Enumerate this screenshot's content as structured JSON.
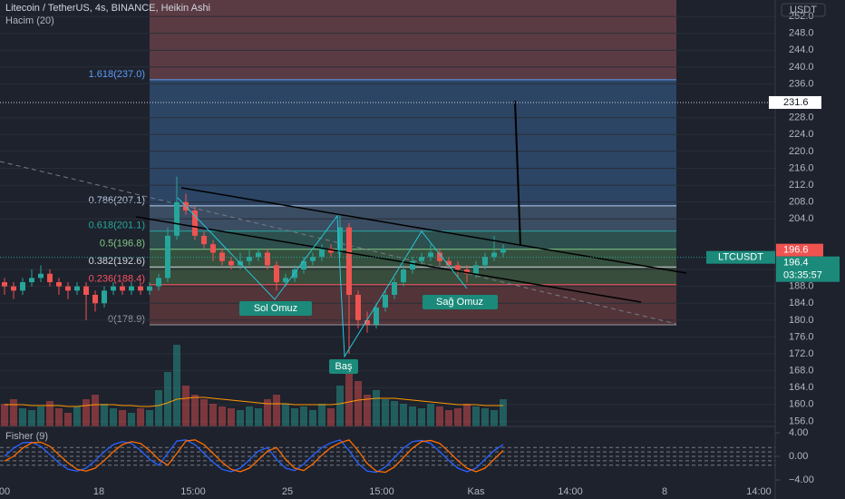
{
  "chart_data": {
    "type": "candlestick",
    "title": "Litecoin / TetherUS, 4s, BINANCE, Heikin Ashi",
    "volume_title": "Hacim (20)",
    "fisher_title": "Fisher (9)",
    "currency": "USDT",
    "symbol": "LTCUSDT",
    "up_color": "#26a69a",
    "down_color": "#ef5350",
    "open": [
      189,
      188,
      187,
      189,
      190,
      191,
      189,
      188,
      187,
      188,
      186,
      184,
      187,
      188,
      187,
      188,
      187,
      188,
      190,
      200,
      208,
      206,
      200,
      198,
      196,
      194,
      193,
      194,
      195,
      196,
      193,
      189,
      190,
      192,
      194,
      195,
      197,
      196,
      202,
      186,
      180,
      179,
      183,
      186,
      189,
      192,
      194,
      195,
      196,
      194,
      193,
      192,
      191,
      193,
      195,
      196
    ],
    "close": [
      188,
      187,
      189,
      190,
      191,
      189,
      188,
      187,
      188,
      186,
      184,
      187,
      188,
      187,
      188,
      187,
      188,
      190,
      200,
      208,
      206,
      200,
      198,
      196,
      194,
      193,
      194,
      195,
      196,
      193,
      189,
      190,
      192,
      194,
      195,
      197,
      196,
      202,
      186,
      180,
      179,
      183,
      186,
      189,
      192,
      194,
      195,
      196,
      194,
      193,
      192,
      191,
      193,
      195,
      196,
      197
    ],
    "high": [
      190,
      189,
      190,
      192,
      193,
      192,
      190,
      189,
      189,
      189,
      187,
      188,
      189,
      189,
      189,
      189,
      189,
      191,
      202,
      214,
      210,
      207,
      201,
      199,
      197,
      195,
      196,
      197,
      197,
      197,
      194,
      191,
      193,
      195,
      196,
      198,
      198,
      205,
      203,
      187,
      182,
      184,
      187,
      190,
      193,
      195,
      196,
      198,
      197,
      195,
      194,
      193,
      194,
      196,
      200,
      198
    ],
    "low": [
      186,
      185,
      186,
      188,
      189,
      188,
      186,
      185,
      186,
      180,
      182,
      183,
      186,
      186,
      186,
      186,
      186,
      187,
      189,
      199,
      205,
      199,
      197,
      194,
      193,
      192,
      192,
      193,
      194,
      192,
      187,
      188,
      189,
      191,
      193,
      194,
      195,
      195,
      172,
      178,
      177,
      178,
      182,
      185,
      188,
      191,
      193,
      194,
      193,
      192,
      190,
      189,
      190,
      192,
      194,
      195
    ],
    "ylim": [
      154.8,
      255.9
    ],
    "yticks": [
      {
        "value": 156,
        "label": "156.0"
      },
      {
        "value": 160,
        "label": "160.0"
      },
      {
        "value": 164,
        "label": "164.0"
      },
      {
        "value": 168,
        "label": "168.0"
      },
      {
        "value": 172,
        "label": "172.0"
      },
      {
        "value": 176,
        "label": "176.0"
      },
      {
        "value": 180,
        "label": "180.0"
      },
      {
        "value": 184,
        "label": "184.0"
      },
      {
        "value": 188,
        "label": "188.0"
      },
      {
        "value": 192,
        "label": "192.0"
      },
      {
        "value": 204,
        "label": "204.0"
      },
      {
        "value": 208,
        "label": "208.0"
      },
      {
        "value": 212,
        "label": "212.0"
      },
      {
        "value": 216,
        "label": "216.0"
      },
      {
        "value": 220,
        "label": "220.0"
      },
      {
        "value": 224,
        "label": "224.0"
      },
      {
        "value": 228,
        "label": "228.0"
      },
      {
        "value": 236,
        "label": "236.0"
      },
      {
        "value": 240,
        "label": "240.0"
      },
      {
        "value": 244,
        "label": "244.0"
      },
      {
        "value": 248,
        "label": "248.0"
      },
      {
        "value": 252,
        "label": "252.0"
      }
    ],
    "x_labels": [
      "00",
      "18",
      "15:00",
      "25",
      "15:00",
      "Kas",
      "14:00",
      "8",
      "14:00"
    ],
    "volume": {
      "ylim": [
        0,
        100
      ],
      "ma_color": "#ff9800",
      "values": [
        25,
        30,
        20,
        18,
        22,
        28,
        20,
        15,
        22,
        30,
        35,
        25,
        20,
        18,
        15,
        20,
        18,
        40,
        60,
        90,
        45,
        35,
        30,
        25,
        22,
        20,
        18,
        22,
        20,
        30,
        35,
        25,
        20,
        22,
        18,
        25,
        20,
        45,
        60,
        50,
        35,
        40,
        30,
        28,
        25,
        22,
        20,
        25,
        22,
        18,
        20,
        25,
        22,
        20,
        18,
        30
      ],
      "ma": [
        24,
        24,
        24,
        23,
        23,
        23,
        23,
        22,
        22,
        23,
        24,
        24,
        24,
        23,
        23,
        22,
        22,
        23,
        26,
        30,
        31,
        32,
        32,
        31,
        30,
        29,
        28,
        27,
        26,
        25,
        25,
        25,
        24,
        24,
        24,
        24,
        24,
        25,
        27,
        29,
        30,
        31,
        31,
        31,
        30,
        29,
        28,
        27,
        26,
        25,
        24,
        24,
        24,
        23,
        23,
        23
      ]
    },
    "fisher": {
      "ylim": [
        -5.69,
        5.08
      ],
      "yticks": [
        {
          "value": 4,
          "label": "4.00"
        },
        {
          "value": 0,
          "label": "0.00"
        },
        {
          "value": -4,
          "label": "−4.00"
        }
      ],
      "levels": [
        1.5,
        0.75,
        0,
        -0.75,
        -1.5
      ],
      "series": [
        {
          "color": "#2962ff",
          "values": [
            0,
            1.4,
            2.3,
            2.4,
            1.7,
            0.3,
            -1.1,
            -2.2,
            -2.5,
            -2,
            -0.7,
            0.8,
            2,
            2.5,
            2.2,
            1,
            -0.5,
            -1.5,
            0.5,
            2.6,
            2.8,
            2,
            0.5,
            -1,
            -2.2,
            -2.6,
            -2,
            -0.6,
            0.9,
            1.5,
            -0.5,
            -2,
            -2.4,
            -1.3,
            0.2,
            1.5,
            2.3,
            2.8,
            1,
            -1.2,
            -2.5,
            -2.7,
            -1.8,
            -0.2,
            1.4,
            2.5,
            2.7,
            2.2,
            0.8,
            -0.7,
            -2,
            -2.6,
            -2,
            -0.5,
            1,
            2
          ]
        },
        {
          "color": "#ff6d00",
          "values": [
            -0.8,
            0,
            1.4,
            2.3,
            2.4,
            1.7,
            0.3,
            -1.1,
            -2.2,
            -2.5,
            -2,
            -0.7,
            0.8,
            2,
            2.5,
            2.2,
            1,
            -0.5,
            -1.5,
            0.5,
            2.6,
            2.8,
            2,
            0.5,
            -1,
            -2.2,
            -2.6,
            -2,
            -0.6,
            0.9,
            1.5,
            -0.5,
            -2,
            -2.4,
            -1.3,
            0.2,
            1.5,
            2.3,
            2.8,
            1,
            -1.2,
            -2.5,
            -2.7,
            -1.8,
            -0.2,
            1.4,
            2.5,
            2.7,
            2.2,
            0.8,
            -0.7,
            -2,
            -2.6,
            -2,
            -0.5,
            1
          ]
        }
      ]
    },
    "fib": [
      {
        "label": "1.618(237.0)",
        "value": 237.0,
        "color": "#5b9cf6",
        "fill": "#2c4565"
      },
      {
        "label": "0.786(207.1)",
        "value": 207.1,
        "color": "#b8cde6",
        "fill": "#3b4d62"
      },
      {
        "label": "0.618(201.1)",
        "value": 201.1,
        "color": "#26a69a",
        "fill": "#2d4f4e"
      },
      {
        "label": "0.5(196.8)",
        "value": 196.8,
        "color": "#81c784",
        "fill": "#35503f"
      },
      {
        "label": "0.382(192.6)",
        "value": 192.6,
        "color": "#d1d4dc",
        "fill": "#384d3b"
      },
      {
        "label": "0.236(188.4)",
        "value": 188.4,
        "color": "#f7525f",
        "fill": "#523439"
      },
      {
        "label": "0(178.9)",
        "value": 178.9,
        "color": "#9598a1"
      }
    ],
    "annotations": [
      "Sol Omuz",
      "Baş",
      "Sağ Omuz"
    ],
    "target": 231.6,
    "last_price": 196.6,
    "bid": 196.4,
    "countdown": "03:35:57"
  }
}
